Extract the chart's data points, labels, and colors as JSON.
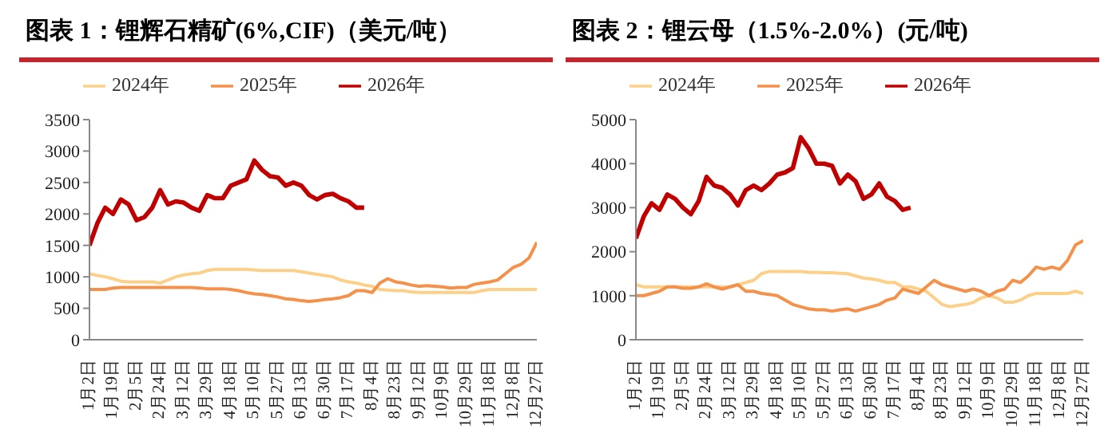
{
  "chart_data": [
    {
      "type": "line",
      "title": "图表 1：锂辉石精矿(6%,CIF)（美元/吨）",
      "categories": [
        "1月2日",
        null,
        null,
        "1月19日",
        null,
        null,
        "2月5日",
        null,
        null,
        "2月24日",
        null,
        null,
        "3月12日",
        null,
        null,
        "3月29日",
        null,
        null,
        "4月18日",
        null,
        null,
        "5月10日",
        null,
        null,
        "5月27日",
        null,
        null,
        "6月13日",
        null,
        null,
        "6月30日",
        null,
        null,
        "7月17日",
        null,
        null,
        "8月4日",
        null,
        null,
        "8月23日",
        null,
        null,
        "9月12日",
        null,
        null,
        "10月9日",
        null,
        null,
        "10月29日",
        null,
        null,
        "11月18日",
        null,
        null,
        "12月8日",
        null,
        null,
        "12月27日"
      ],
      "series": [
        {
          "name": "2024年",
          "color": "#fdd08a",
          "values": [
            1050,
            1020,
            1000,
            970,
            930,
            920,
            920,
            920,
            920,
            900,
            950,
            1000,
            1030,
            1050,
            1060,
            1100,
            1120,
            1120,
            1120,
            1120,
            1120,
            1110,
            1100,
            1100,
            1100,
            1100,
            1100,
            1080,
            1060,
            1040,
            1020,
            1000,
            950,
            920,
            900,
            870,
            850,
            800,
            790,
            780,
            780,
            760,
            750,
            750,
            750,
            750,
            750,
            750,
            750,
            750,
            780,
            800,
            800,
            800,
            800,
            800,
            800,
            800
          ]
        },
        {
          "name": "2025年",
          "color": "#f4914a",
          "values": [
            800,
            800,
            800,
            820,
            830,
            830,
            830,
            830,
            830,
            830,
            830,
            830,
            830,
            830,
            820,
            810,
            810,
            810,
            800,
            780,
            750,
            730,
            720,
            700,
            680,
            650,
            640,
            620,
            610,
            620,
            640,
            650,
            670,
            700,
            780,
            780,
            750,
            900,
            970,
            920,
            900,
            870,
            850,
            860,
            850,
            840,
            820,
            830,
            830,
            880,
            900,
            920,
            950,
            1050,
            1150,
            1200,
            1300,
            1550
          ]
        },
        {
          "name": "2026年",
          "color": "#c00000",
          "values": [
            1500,
            1850,
            2100,
            2000,
            2230,
            2150,
            1900,
            1950,
            2100,
            2380,
            2150,
            2200,
            2180,
            2100,
            2050,
            2300,
            2250,
            2250,
            2450,
            2500,
            2550,
            2850,
            2700,
            2600,
            2580,
            2450,
            2500,
            2450,
            2300,
            2230,
            2300,
            2320,
            2250,
            2200,
            2100,
            2100,
            null,
            null,
            null,
            null,
            null,
            null,
            null,
            null,
            null,
            null,
            null,
            null,
            null,
            null,
            null,
            null,
            null,
            null,
            null,
            null,
            null,
            null
          ]
        }
      ],
      "ylim": [
        0,
        3500
      ],
      "yticks": [
        0,
        500,
        1000,
        1500,
        2000,
        2500,
        3000,
        3500
      ],
      "grid": false,
      "legend": "top",
      "marker": "none",
      "line_style": "solid"
    },
    {
      "type": "line",
      "title": "图表 2：锂云母（1.5%-2.0%）(元/吨)",
      "categories": [
        "1月2日",
        null,
        null,
        "1月19日",
        null,
        null,
        "2月5日",
        null,
        null,
        "2月24日",
        null,
        null,
        "3月12日",
        null,
        null,
        "3月29日",
        null,
        null,
        "4月18日",
        null,
        null,
        "5月10日",
        null,
        null,
        "5月27日",
        null,
        null,
        "6月13日",
        null,
        null,
        "6月30日",
        null,
        null,
        "7月17日",
        null,
        null,
        "8月4日",
        null,
        null,
        "8月23日",
        null,
        null,
        "9月12日",
        null,
        null,
        "10月9日",
        null,
        null,
        "10月29日",
        null,
        null,
        "11月18日",
        null,
        null,
        "12月8日",
        null,
        null,
        "12月27日"
      ],
      "series": [
        {
          "name": "2024年",
          "color": "#fdd08a",
          "values": [
            1250,
            1200,
            1200,
            1200,
            1200,
            1200,
            1200,
            1200,
            1200,
            1200,
            1200,
            1200,
            1200,
            1250,
            1300,
            1350,
            1500,
            1550,
            1550,
            1550,
            1550,
            1550,
            1530,
            1530,
            1520,
            1520,
            1510,
            1500,
            1450,
            1400,
            1380,
            1350,
            1300,
            1300,
            1200,
            1200,
            1150,
            1100,
            950,
            800,
            750,
            780,
            800,
            850,
            950,
            1000,
            950,
            850,
            850,
            900,
            1000,
            1050,
            1050,
            1050,
            1050,
            1050,
            1100,
            1050
          ]
        },
        {
          "name": "2025年",
          "color": "#f4914a",
          "values": [
            1000,
            1000,
            1050,
            1100,
            1200,
            1200,
            1170,
            1170,
            1200,
            1270,
            1200,
            1150,
            1200,
            1250,
            1100,
            1100,
            1050,
            1030,
            1000,
            900,
            800,
            750,
            700,
            680,
            680,
            650,
            680,
            700,
            650,
            700,
            750,
            800,
            900,
            950,
            1150,
            1100,
            1050,
            1200,
            1350,
            1250,
            1200,
            1150,
            1100,
            1150,
            1100,
            1000,
            1100,
            1150,
            1350,
            1300,
            1450,
            1650,
            1600,
            1650,
            1600,
            1800,
            2150,
            2250
          ]
        },
        {
          "name": "2026年",
          "color": "#c00000",
          "values": [
            2300,
            2800,
            3100,
            2950,
            3300,
            3200,
            3000,
            2850,
            3150,
            3700,
            3500,
            3450,
            3300,
            3050,
            3400,
            3500,
            3400,
            3550,
            3750,
            3800,
            3900,
            4600,
            4350,
            4000,
            4000,
            3950,
            3550,
            3750,
            3600,
            3200,
            3300,
            3550,
            3250,
            3150,
            2950,
            3000,
            null,
            null,
            null,
            null,
            null,
            null,
            null,
            null,
            null,
            null,
            null,
            null,
            null,
            null,
            null,
            null,
            null,
            null,
            null,
            null,
            null,
            null
          ]
        }
      ],
      "ylim": [
        0,
        5000
      ],
      "yticks": [
        0,
        1000,
        2000,
        3000,
        4000,
        5000
      ],
      "grid": false,
      "legend": "top",
      "marker": "none",
      "line_style": "solid"
    }
  ]
}
